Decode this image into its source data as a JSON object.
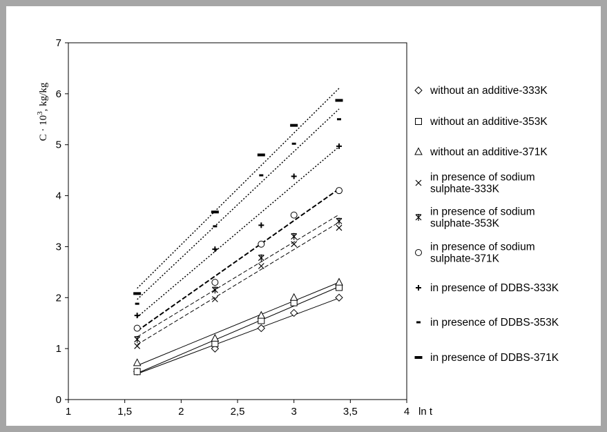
{
  "chart_data": {
    "type": "scatter",
    "xlabel": "ln t",
    "ylabel": "C · 10^3, kg/kg",
    "ylabel_base": "C · 10",
    "ylabel_exp": "3",
    "ylabel_unit": ", kg/kg",
    "xlim": [
      1,
      4
    ],
    "ylim": [
      0,
      7
    ],
    "x_ticks": [
      "1",
      "1,5",
      "2",
      "2,5",
      "3",
      "3,5",
      "4"
    ],
    "y_ticks": [
      "0",
      "1",
      "2",
      "3",
      "4",
      "5",
      "6",
      "7"
    ],
    "grid": false,
    "legend_position": "right",
    "trendlines": "linear",
    "series": [
      {
        "name": "without an additive-333K",
        "marker": "diamond",
        "line": "solid",
        "x": [
          1.61,
          2.3,
          2.71,
          3.0,
          3.4
        ],
        "y": [
          0.55,
          1.0,
          1.4,
          1.7,
          2.0
        ]
      },
      {
        "name": "without an additive-353K",
        "marker": "square",
        "line": "solid",
        "x": [
          1.61,
          2.3,
          2.71,
          3.0,
          3.4
        ],
        "y": [
          0.55,
          1.1,
          1.55,
          1.9,
          2.2
        ]
      },
      {
        "name": "without an additive-371K",
        "marker": "triangle",
        "line": "solid",
        "x": [
          1.61,
          2.3,
          2.71,
          3.0,
          3.4
        ],
        "y": [
          0.72,
          1.2,
          1.65,
          2.0,
          2.3
        ]
      },
      {
        "name": "in presence of sodium sulphate-333K",
        "marker": "x",
        "line": "dashed",
        "x": [
          1.61,
          2.3,
          2.71,
          3.0,
          3.4
        ],
        "y": [
          1.05,
          1.97,
          2.62,
          3.05,
          3.37
        ]
      },
      {
        "name": "in presence of sodium sulphate-353K",
        "marker": "star",
        "line": "dashed",
        "x": [
          1.61,
          2.3,
          2.71,
          3.0,
          3.4
        ],
        "y": [
          1.18,
          2.15,
          2.78,
          3.2,
          3.5
        ]
      },
      {
        "name": "in presence of sodium sulphate-371K",
        "marker": "circle",
        "line": "dashed-heavy",
        "x": [
          1.61,
          2.3,
          2.71,
          3.0,
          3.4
        ],
        "y": [
          1.4,
          2.3,
          3.05,
          3.62,
          4.1
        ]
      },
      {
        "name": "in presence of DDBS-333K",
        "marker": "plus",
        "line": "dotted",
        "x": [
          1.61,
          2.3,
          2.71,
          3.0,
          3.4
        ],
        "y": [
          1.65,
          2.95,
          3.42,
          4.38,
          4.97
        ]
      },
      {
        "name": "in presence of DDBS-353K",
        "marker": "dash-small",
        "line": "dotted",
        "x": [
          1.61,
          2.3,
          2.71,
          3.0,
          3.4
        ],
        "y": [
          1.88,
          3.4,
          4.4,
          5.02,
          5.5
        ]
      },
      {
        "name": "in presence of DDBS-371K",
        "marker": "dash-large",
        "line": "dotted",
        "x": [
          1.61,
          2.3,
          2.71,
          3.0,
          3.4
        ],
        "y": [
          2.08,
          3.68,
          4.8,
          5.38,
          5.87
        ]
      }
    ],
    "legend": [
      {
        "lines": [
          "without an additive-333K"
        ]
      },
      {
        "lines": [
          "without an additive-353K"
        ]
      },
      {
        "lines": [
          "without an additive-371K"
        ]
      },
      {
        "lines": [
          "in presence of sodium",
          "sulphate-333K"
        ]
      },
      {
        "lines": [
          "in presence of sodium",
          "sulphate-353K"
        ]
      },
      {
        "lines": [
          "in presence of sodium",
          "sulphate-371K"
        ]
      },
      {
        "lines": [
          "in presence of DDBS-333K"
        ]
      },
      {
        "lines": [
          "in presence of DDBS-353K"
        ]
      },
      {
        "lines": [
          "in presence of DDBS-371K"
        ]
      }
    ]
  }
}
